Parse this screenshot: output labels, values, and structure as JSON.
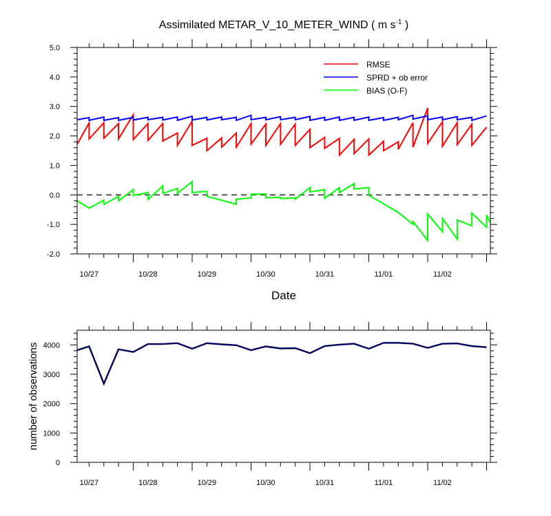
{
  "figure": {
    "title": "Assimilated METAR_V_10_METER_WIND ( m s",
    "title_sup": "-1",
    "title_end": " )"
  },
  "chart_data": [
    {
      "type": "line",
      "title": "Assimilated METAR_V_10_METER_WIND ( m s-1 )",
      "xlabel": "Date",
      "ylabel": "",
      "x_range_days": [
        0,
        7
      ],
      "x_tick_labels": [
        "10/27",
        "10/28",
        "10/29",
        "10/30",
        "10/31",
        "11/01",
        "11/02"
      ],
      "ylim": [
        -2.0,
        5.0
      ],
      "y_ticks": [
        5.0,
        4.0,
        3.0,
        2.0,
        1.0,
        0.0,
        -1.0,
        -2.0
      ],
      "y_tick_labels": [
        "5.0",
        "4.0",
        "3.0",
        "2.0",
        "1.0",
        "0.0",
        "-1.0",
        "-2.0"
      ],
      "reference_line": {
        "y": 0.0,
        "style": "dashed"
      },
      "legend_placement": "top-right",
      "series": [
        {
          "name": "RMSE",
          "color": "#ff0000",
          "points": [
            [
              0.0,
              1.72
            ],
            [
              0.25,
              2.44
            ],
            [
              0.25,
              1.9
            ],
            [
              0.5,
              2.45
            ],
            [
              0.5,
              1.92
            ],
            [
              0.75,
              2.42
            ],
            [
              0.75,
              1.9
            ],
            [
              1.0,
              2.72
            ],
            [
              1.0,
              1.88
            ],
            [
              1.25,
              2.42
            ],
            [
              1.25,
              1.85
            ],
            [
              1.5,
              2.42
            ],
            [
              1.5,
              1.83
            ],
            [
              1.75,
              2.1
            ],
            [
              1.75,
              1.68
            ],
            [
              2.0,
              2.5
            ],
            [
              2.0,
              1.68
            ],
            [
              2.25,
              1.92
            ],
            [
              2.25,
              1.5
            ],
            [
              2.5,
              1.93
            ],
            [
              2.5,
              1.62
            ],
            [
              2.75,
              2.1
            ],
            [
              2.75,
              1.62
            ],
            [
              3.0,
              2.42
            ],
            [
              3.0,
              1.72
            ],
            [
              3.25,
              2.4
            ],
            [
              3.25,
              1.68
            ],
            [
              3.5,
              2.42
            ],
            [
              3.5,
              1.72
            ],
            [
              3.75,
              2.4
            ],
            [
              3.75,
              1.68
            ],
            [
              4.0,
              2.22
            ],
            [
              4.0,
              1.6
            ],
            [
              4.25,
              1.95
            ],
            [
              4.25,
              1.58
            ],
            [
              4.5,
              1.92
            ],
            [
              4.5,
              1.35
            ],
            [
              4.75,
              1.88
            ],
            [
              4.75,
              1.4
            ],
            [
              5.0,
              1.9
            ],
            [
              5.0,
              1.35
            ],
            [
              5.25,
              1.82
            ],
            [
              5.25,
              1.5
            ],
            [
              5.5,
              1.8
            ],
            [
              5.5,
              1.55
            ],
            [
              5.75,
              2.45
            ],
            [
              5.75,
              1.62
            ],
            [
              6.0,
              2.95
            ],
            [
              6.0,
              1.75
            ],
            [
              6.25,
              2.48
            ],
            [
              6.25,
              1.65
            ],
            [
              6.5,
              2.45
            ],
            [
              6.5,
              1.7
            ],
            [
              6.75,
              2.4
            ],
            [
              6.75,
              1.68
            ],
            [
              7.0,
              2.3
            ]
          ]
        },
        {
          "name": "SPRD + ob error",
          "color": "#0000ff",
          "points": [
            [
              0.0,
              2.55
            ],
            [
              0.25,
              2.62
            ],
            [
              0.25,
              2.53
            ],
            [
              0.5,
              2.64
            ],
            [
              0.5,
              2.53
            ],
            [
              0.75,
              2.62
            ],
            [
              0.75,
              2.53
            ],
            [
              1.0,
              2.63
            ],
            [
              1.0,
              2.54
            ],
            [
              1.25,
              2.63
            ],
            [
              1.25,
              2.55
            ],
            [
              1.5,
              2.63
            ],
            [
              1.5,
              2.54
            ],
            [
              1.75,
              2.64
            ],
            [
              1.75,
              2.53
            ],
            [
              2.0,
              2.67
            ],
            [
              2.0,
              2.54
            ],
            [
              2.25,
              2.63
            ],
            [
              2.25,
              2.54
            ],
            [
              2.5,
              2.64
            ],
            [
              2.5,
              2.55
            ],
            [
              2.75,
              2.63
            ],
            [
              2.75,
              2.53
            ],
            [
              3.0,
              2.7
            ],
            [
              3.0,
              2.55
            ],
            [
              3.25,
              2.63
            ],
            [
              3.25,
              2.55
            ],
            [
              3.5,
              2.65
            ],
            [
              3.5,
              2.55
            ],
            [
              3.75,
              2.63
            ],
            [
              3.75,
              2.55
            ],
            [
              4.0,
              2.66
            ],
            [
              4.0,
              2.53
            ],
            [
              4.25,
              2.63
            ],
            [
              4.25,
              2.53
            ],
            [
              4.5,
              2.64
            ],
            [
              4.5,
              2.53
            ],
            [
              4.75,
              2.63
            ],
            [
              4.75,
              2.53
            ],
            [
              5.0,
              2.64
            ],
            [
              5.0,
              2.53
            ],
            [
              5.25,
              2.62
            ],
            [
              5.25,
              2.53
            ],
            [
              5.5,
              2.63
            ],
            [
              5.5,
              2.55
            ],
            [
              5.75,
              2.7
            ],
            [
              5.75,
              2.57
            ],
            [
              6.0,
              2.68
            ],
            [
              6.0,
              2.55
            ],
            [
              6.25,
              2.64
            ],
            [
              6.25,
              2.55
            ],
            [
              6.5,
              2.65
            ],
            [
              6.5,
              2.55
            ],
            [
              6.75,
              2.63
            ],
            [
              6.75,
              2.53
            ],
            [
              7.0,
              2.68
            ]
          ]
        },
        {
          "name": "BIAS (O-F)",
          "color": "#00ff00",
          "points": [
            [
              0.0,
              -0.2
            ],
            [
              0.25,
              -0.45
            ],
            [
              0.5,
              -0.18
            ],
            [
              0.5,
              -0.32
            ],
            [
              0.75,
              -0.05
            ],
            [
              0.75,
              -0.2
            ],
            [
              1.0,
              0.18
            ],
            [
              1.0,
              -0.02
            ],
            [
              1.25,
              0.08
            ],
            [
              1.25,
              -0.15
            ],
            [
              1.5,
              0.3
            ],
            [
              1.5,
              0.05
            ],
            [
              1.75,
              0.22
            ],
            [
              1.75,
              0.05
            ],
            [
              2.0,
              0.45
            ],
            [
              2.0,
              0.08
            ],
            [
              2.25,
              0.12
            ],
            [
              2.25,
              -0.05
            ],
            [
              2.5,
              -0.18
            ],
            [
              2.75,
              -0.32
            ],
            [
              2.75,
              -0.15
            ],
            [
              3.0,
              -0.1
            ],
            [
              3.0,
              0.02
            ],
            [
              3.25,
              0.03
            ],
            [
              3.25,
              -0.1
            ],
            [
              3.5,
              -0.08
            ],
            [
              3.5,
              -0.12
            ],
            [
              3.75,
              -0.1
            ],
            [
              3.75,
              -0.15
            ],
            [
              4.0,
              0.25
            ],
            [
              4.0,
              0.1
            ],
            [
              4.25,
              0.18
            ],
            [
              4.25,
              -0.12
            ],
            [
              4.5,
              0.25
            ],
            [
              4.5,
              0.08
            ],
            [
              4.75,
              0.38
            ],
            [
              4.75,
              0.2
            ],
            [
              5.0,
              0.25
            ],
            [
              5.0,
              -0.02
            ],
            [
              5.25,
              -0.3
            ],
            [
              5.5,
              -0.6
            ],
            [
              5.75,
              -1.0
            ],
            [
              5.75,
              -0.9
            ],
            [
              6.0,
              -1.55
            ],
            [
              6.0,
              -0.65
            ],
            [
              6.25,
              -1.25
            ],
            [
              6.25,
              -0.8
            ],
            [
              6.5,
              -1.5
            ],
            [
              6.5,
              -0.85
            ],
            [
              6.75,
              -1.05
            ],
            [
              6.75,
              -0.62
            ],
            [
              7.0,
              -1.1
            ],
            [
              7.0,
              -0.68
            ],
            [
              7.25,
              -0.95
            ]
          ]
        }
      ]
    },
    {
      "type": "line",
      "title": "",
      "xlabel": "",
      "ylabel": "number of observations",
      "x_range_days": [
        0,
        7
      ],
      "x_tick_labels": [
        "10/27",
        "10/28",
        "10/29",
        "10/30",
        "10/31",
        "11/01",
        "11/02"
      ],
      "ylim": [
        0,
        4500
      ],
      "y_ticks": [
        4000,
        3000,
        2000,
        1000,
        0
      ],
      "y_tick_labels": [
        "4000",
        "3000",
        "2000",
        "1000",
        "0"
      ],
      "series": [
        {
          "color": "#000080",
          "x": [
            0.0,
            0.25,
            0.5,
            0.75,
            1.0,
            1.25,
            1.5,
            1.75,
            2.0,
            2.25,
            2.5,
            2.75,
            3.0,
            3.25,
            3.5,
            3.75,
            4.0,
            4.25,
            4.5,
            4.75,
            5.0,
            5.25,
            5.5,
            5.75,
            6.0,
            6.25,
            6.5,
            6.75,
            7.0
          ],
          "values": [
            3820,
            3950,
            2680,
            3850,
            3760,
            4030,
            4030,
            4060,
            3870,
            4060,
            4020,
            3990,
            3820,
            3950,
            3880,
            3890,
            3720,
            3960,
            4010,
            4040,
            3870,
            4070,
            4070,
            4040,
            3900,
            4040,
            4050,
            3960,
            3920
          ]
        }
      ]
    }
  ]
}
